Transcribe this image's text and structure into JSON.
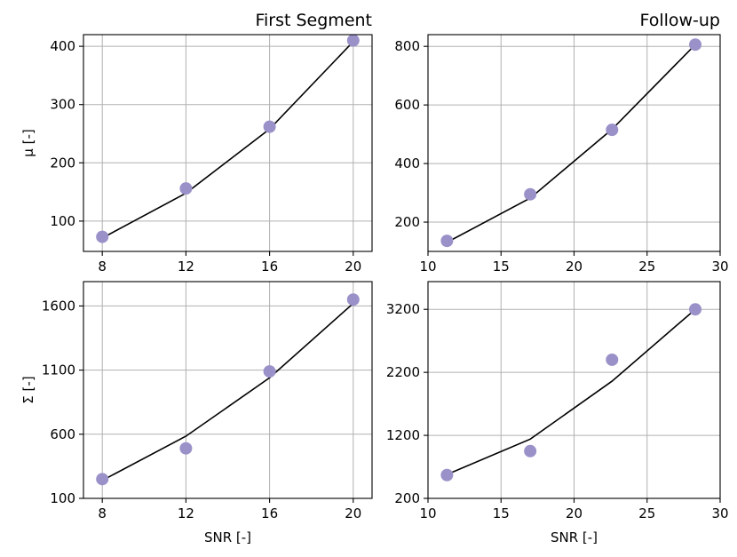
{
  "colors": {
    "marker": "#9b91c9",
    "line": "#000000",
    "grid": "#b0b0b0"
  },
  "chart_data": [
    {
      "type": "line",
      "panel": "top-left",
      "title": "",
      "right_title": "First Segment",
      "xlabel": "",
      "ylabel": "μ [-]",
      "xlim": [
        7.1,
        20.9
      ],
      "ylim": [
        48,
        420
      ],
      "xticks": [
        8,
        12,
        16,
        20
      ],
      "yticks": [
        100,
        200,
        300,
        400
      ],
      "grid": true,
      "series": [
        {
          "x": [
            8,
            12,
            16,
            20
          ],
          "y": [
            71,
            148,
            258,
            408
          ],
          "style": "line"
        },
        {
          "x": [
            8,
            12,
            16,
            20
          ],
          "y": [
            73,
            156,
            262,
            410
          ],
          "style": "markers"
        }
      ]
    },
    {
      "type": "line",
      "panel": "top-right",
      "title": "",
      "right_title": "Follow-up",
      "xlabel": "",
      "ylabel": "",
      "xlim": [
        10,
        30
      ],
      "ylim": [
        100,
        840
      ],
      "xticks": [
        10,
        15,
        20,
        25,
        30
      ],
      "yticks": [
        200,
        400,
        600,
        800
      ],
      "grid": true,
      "series": [
        {
          "x": [
            11.3,
            17,
            22.6,
            28.3
          ],
          "y": [
            131,
            282,
            517,
            806
          ],
          "style": "line"
        },
        {
          "x": [
            11.3,
            17,
            22.6,
            28.3
          ],
          "y": [
            136,
            295,
            515,
            806
          ],
          "style": "markers"
        }
      ]
    },
    {
      "type": "line",
      "panel": "bottom-left",
      "title": "",
      "xlabel": "SNR [-]",
      "ylabel": "Σ [-]",
      "xlim": [
        7.1,
        20.9
      ],
      "ylim": [
        100,
        1790
      ],
      "xticks": [
        8,
        12,
        16,
        20
      ],
      "yticks": [
        100,
        600,
        1100,
        1600
      ],
      "grid": true,
      "series": [
        {
          "x": [
            8,
            12,
            16,
            20
          ],
          "y": [
            240,
            585,
            1040,
            1620
          ],
          "style": "line"
        },
        {
          "x": [
            8,
            12,
            16,
            20
          ],
          "y": [
            250,
            490,
            1090,
            1650
          ],
          "style": "markers"
        }
      ]
    },
    {
      "type": "line",
      "panel": "bottom-right",
      "title": "",
      "xlabel": "SNR [-]",
      "ylabel": "",
      "xlim": [
        10,
        30
      ],
      "ylim": [
        200,
        3640
      ],
      "xticks": [
        10,
        15,
        20,
        25,
        30
      ],
      "yticks": [
        200,
        1200,
        2200,
        3200
      ],
      "grid": true,
      "series": [
        {
          "x": [
            11.3,
            17,
            22.6,
            28.3
          ],
          "y": [
            580,
            1140,
            2060,
            3200
          ],
          "style": "line"
        },
        {
          "x": [
            11.3,
            17,
            22.6,
            28.3
          ],
          "y": [
            570,
            950,
            2400,
            3200
          ],
          "style": "markers"
        }
      ]
    }
  ]
}
